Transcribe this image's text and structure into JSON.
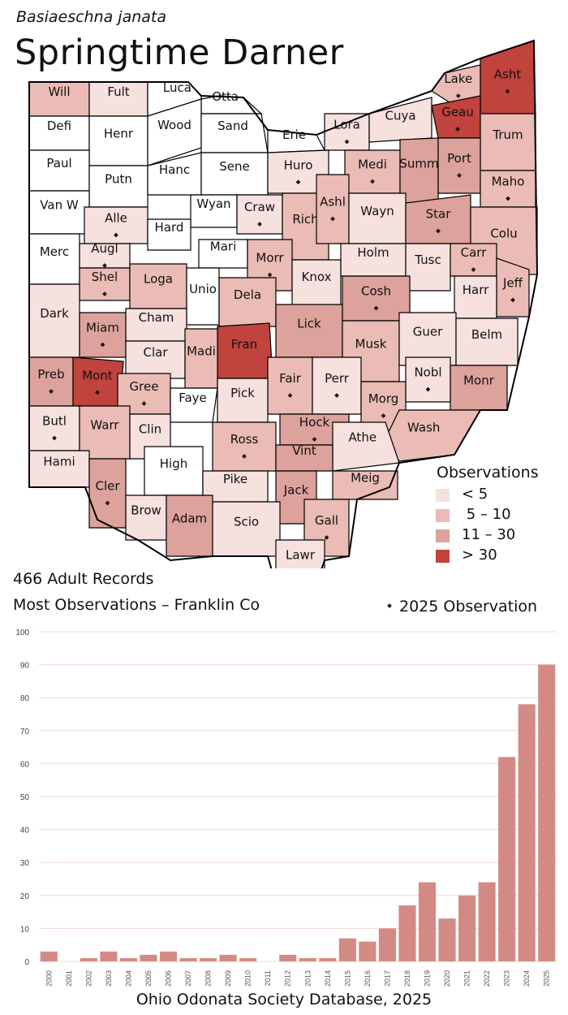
{
  "header": {
    "scientific_name": "Basiaeschna janata",
    "common_name": "Springtime Darner"
  },
  "legend": {
    "title": "Observations",
    "items": [
      {
        "label": "< 5",
        "color": "#f6e1df"
      },
      {
        "label": " 5 – 10",
        "color": "#ebbbb6"
      },
      {
        "label": "11 – 30",
        "color": "#dca29b"
      },
      {
        "label": "> 30",
        "color": "#c0433d"
      }
    ]
  },
  "summary": {
    "records": "466 Adult Records",
    "most": "Most Observations – Franklin Co",
    "marker_legend": "2025  Observation"
  },
  "source": "Ohio Odonata Society Database, 2025",
  "map": {
    "counties": [
      {
        "name": "Will",
        "class": "c2",
        "dot": false
      },
      {
        "name": "Fult",
        "class": "c1",
        "dot": false
      },
      {
        "name": "Luca",
        "class": "c0",
        "dot": false
      },
      {
        "name": "Otta",
        "class": "c0",
        "dot": false
      },
      {
        "name": "Lake",
        "class": "c2",
        "dot": true
      },
      {
        "name": "Asht",
        "class": "c4",
        "dot": true
      },
      {
        "name": "Defi",
        "class": "c0",
        "dot": false
      },
      {
        "name": "Henr",
        "class": "c0",
        "dot": false
      },
      {
        "name": "Wood",
        "class": "c0",
        "dot": false
      },
      {
        "name": "Sand",
        "class": "c0",
        "dot": false
      },
      {
        "name": "Erie",
        "class": "c0",
        "dot": false
      },
      {
        "name": "Lora",
        "class": "c1",
        "dot": true
      },
      {
        "name": "Cuya",
        "class": "c1",
        "dot": false
      },
      {
        "name": "Geau",
        "class": "c4",
        "dot": true
      },
      {
        "name": "Trum",
        "class": "c2",
        "dot": false
      },
      {
        "name": "Paul",
        "class": "c0",
        "dot": false
      },
      {
        "name": "Putn",
        "class": "c0",
        "dot": false
      },
      {
        "name": "Hanc",
        "class": "c0",
        "dot": false
      },
      {
        "name": "Sene",
        "class": "c0",
        "dot": false
      },
      {
        "name": "Huro",
        "class": "c1",
        "dot": true
      },
      {
        "name": "Medi",
        "class": "c2",
        "dot": true
      },
      {
        "name": "Summ",
        "class": "c3",
        "dot": false
      },
      {
        "name": "Port",
        "class": "c3",
        "dot": true
      },
      {
        "name": "Maho",
        "class": "c2",
        "dot": true
      },
      {
        "name": "Van W",
        "class": "c0",
        "dot": false
      },
      {
        "name": "Alle",
        "class": "c1",
        "dot": true
      },
      {
        "name": "Wyan",
        "class": "c0",
        "dot": false
      },
      {
        "name": "Craw",
        "class": "c1",
        "dot": true
      },
      {
        "name": "Rich",
        "class": "c2",
        "dot": false
      },
      {
        "name": "Ashl",
        "class": "c2",
        "dot": true
      },
      {
        "name": "Wayn",
        "class": "c1",
        "dot": false
      },
      {
        "name": "Star",
        "class": "c3",
        "dot": true
      },
      {
        "name": "Colu",
        "class": "c2",
        "dot": false
      },
      {
        "name": "Hard",
        "class": "c0",
        "dot": false
      },
      {
        "name": "Merc",
        "class": "c0",
        "dot": false
      },
      {
        "name": "Augl",
        "class": "c1",
        "dot": true
      },
      {
        "name": "Mari",
        "class": "c0",
        "dot": false
      },
      {
        "name": "Morr",
        "class": "c2",
        "dot": true
      },
      {
        "name": "Knox",
        "class": "c1",
        "dot": false
      },
      {
        "name": "Holm",
        "class": "c1",
        "dot": false
      },
      {
        "name": "Tusc",
        "class": "c1",
        "dot": false
      },
      {
        "name": "Carr",
        "class": "c2",
        "dot": true
      },
      {
        "name": "Jeff",
        "class": "c2",
        "dot": true
      },
      {
        "name": "Shel",
        "class": "c2",
        "dot": true
      },
      {
        "name": "Loga",
        "class": "c2",
        "dot": false
      },
      {
        "name": "Unio",
        "class": "c0",
        "dot": false
      },
      {
        "name": "Dela",
        "class": "c2",
        "dot": false
      },
      {
        "name": "Harr",
        "class": "c1",
        "dot": false
      },
      {
        "name": "Dark",
        "class": "c1",
        "dot": false
      },
      {
        "name": "Cham",
        "class": "c1",
        "dot": false
      },
      {
        "name": "Lick",
        "class": "c3",
        "dot": false
      },
      {
        "name": "Cosh",
        "class": "c3",
        "dot": true
      },
      {
        "name": "Miam",
        "class": "c3",
        "dot": true
      },
      {
        "name": "Fran",
        "class": "c4",
        "dot": false
      },
      {
        "name": "Musk",
        "class": "c2",
        "dot": false
      },
      {
        "name": "Guer",
        "class": "c1",
        "dot": false
      },
      {
        "name": "Belm",
        "class": "c1",
        "dot": false
      },
      {
        "name": "Clar",
        "class": "c1",
        "dot": false
      },
      {
        "name": "Madi",
        "class": "c2",
        "dot": false
      },
      {
        "name": "Fair",
        "class": "c2",
        "dot": true
      },
      {
        "name": "Perr",
        "class": "c1",
        "dot": true
      },
      {
        "name": "Nobl",
        "class": "c1",
        "dot": true
      },
      {
        "name": "Monr",
        "class": "c3",
        "dot": false
      },
      {
        "name": "Preb",
        "class": "c3",
        "dot": true
      },
      {
        "name": "Mont",
        "class": "c4",
        "dot": true
      },
      {
        "name": "Gree",
        "class": "c2",
        "dot": true
      },
      {
        "name": "Pick",
        "class": "c1",
        "dot": false
      },
      {
        "name": "Morg",
        "class": "c2",
        "dot": true
      },
      {
        "name": "Faye",
        "class": "c0",
        "dot": false
      },
      {
        "name": "Hock",
        "class": "c3",
        "dot": true
      },
      {
        "name": "Wash",
        "class": "c2",
        "dot": false
      },
      {
        "name": "Butl",
        "class": "c1",
        "dot": true
      },
      {
        "name": "Warr",
        "class": "c2",
        "dot": false
      },
      {
        "name": "Clin",
        "class": "c1",
        "dot": false
      },
      {
        "name": "Ross",
        "class": "c2",
        "dot": true
      },
      {
        "name": "Athe",
        "class": "c1",
        "dot": false
      },
      {
        "name": "Vint",
        "class": "c3",
        "dot": false
      },
      {
        "name": "High",
        "class": "c0",
        "dot": false
      },
      {
        "name": "Hami",
        "class": "c1",
        "dot": false
      },
      {
        "name": "Cler",
        "class": "c3",
        "dot": true
      },
      {
        "name": "Meig",
        "class": "c2",
        "dot": false
      },
      {
        "name": "Jack",
        "class": "c3",
        "dot": false
      },
      {
        "name": "Pike",
        "class": "c1",
        "dot": false
      },
      {
        "name": "Brow",
        "class": "c1",
        "dot": false
      },
      {
        "name": "Adam",
        "class": "c3",
        "dot": false
      },
      {
        "name": "Scio",
        "class": "c1",
        "dot": false
      },
      {
        "name": "Gall",
        "class": "c2",
        "dot": true
      },
      {
        "name": "Lawr",
        "class": "c1",
        "dot": false
      }
    ],
    "classes": {
      "c0": "#ffffff",
      "c1": "#f6e1df",
      "c2": "#ebbbb6",
      "c3": "#dca29b",
      "c4": "#c0433d"
    }
  },
  "chart_data": {
    "type": "bar",
    "categories": [
      "2000",
      "2001",
      "2002",
      "2003",
      "2004",
      "2005",
      "2006",
      "2007",
      "2008",
      "2009",
      "2010",
      "2011",
      "2012",
      "2013",
      "2014",
      "2015",
      "2016",
      "2017",
      "2018",
      "2019",
      "2020",
      "2021",
      "2022",
      "2023",
      "2024",
      "2025"
    ],
    "values": [
      3,
      0,
      1,
      3,
      1,
      2,
      3,
      1,
      1,
      2,
      1,
      0,
      2,
      1,
      1,
      7,
      6,
      10,
      17,
      24,
      13,
      20,
      24,
      62,
      78,
      90
    ],
    "ylim": [
      0,
      100
    ],
    "yticks": [
      0,
      10,
      20,
      30,
      40,
      50,
      60,
      70,
      80,
      90,
      100
    ],
    "bar_color": "#d48a84",
    "grid": true,
    "title": "",
    "xlabel": "",
    "ylabel": ""
  }
}
